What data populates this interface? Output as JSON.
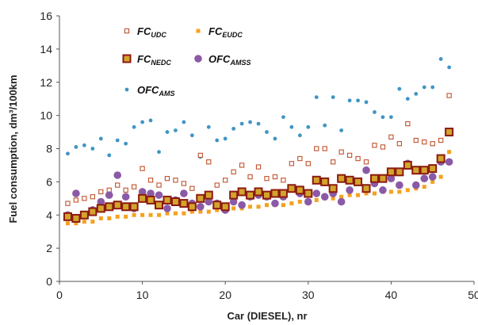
{
  "chart_data": {
    "type": "scatter",
    "xlabel": "Car (DIESEL), nr",
    "ylabel": "Fuel consumption, dm³/100km",
    "xlim": [
      0,
      50
    ],
    "ylim": [
      0,
      16
    ],
    "xticks": [
      "0",
      "10",
      "20",
      "30",
      "40",
      "50"
    ],
    "yticks": [
      "0",
      "2",
      "4",
      "6",
      "8",
      "10",
      "12",
      "14",
      "16"
    ],
    "grid": false,
    "legend_position": "top-left",
    "series": [
      {
        "name": "FC_UDC",
        "label_main": "FC",
        "label_sub": "UDC",
        "marker": "hollow-square",
        "color": "#c0522d",
        "x": [
          1,
          2,
          3,
          4,
          5,
          6,
          7,
          8,
          9,
          10,
          11,
          12,
          13,
          14,
          15,
          16,
          17,
          18,
          19,
          20,
          21,
          22,
          23,
          24,
          25,
          26,
          27,
          28,
          29,
          30,
          31,
          32,
          33,
          34,
          35,
          36,
          37,
          38,
          39,
          40,
          41,
          42,
          43,
          44,
          45,
          46,
          47
        ],
        "y": [
          4.7,
          4.9,
          5.0,
          5.1,
          5.4,
          5.5,
          5.8,
          5.5,
          5.7,
          6.8,
          6.1,
          5.8,
          6.2,
          6.1,
          5.9,
          5.6,
          7.6,
          7.2,
          5.8,
          6.1,
          6.6,
          7.0,
          6.3,
          6.9,
          6.2,
          6.3,
          6.1,
          7.1,
          7.4,
          7.1,
          8.0,
          8.0,
          7.2,
          7.8,
          7.6,
          7.4,
          7.2,
          8.2,
          8.1,
          8.7,
          8.3,
          9.5,
          8.5,
          8.4,
          8.3,
          8.5,
          11.2
        ]
      },
      {
        "name": "FC_EUDC",
        "label_main": "FC",
        "label_sub": "EUDC",
        "marker": "small-square",
        "color": "#f5a11e",
        "x": [
          1,
          2,
          3,
          4,
          5,
          6,
          7,
          8,
          9,
          10,
          11,
          12,
          13,
          14,
          15,
          16,
          17,
          18,
          19,
          20,
          21,
          22,
          23,
          24,
          25,
          26,
          27,
          28,
          29,
          30,
          31,
          32,
          33,
          34,
          35,
          36,
          37,
          38,
          39,
          40,
          41,
          42,
          43,
          44,
          45,
          46,
          47
        ],
        "y": [
          3.5,
          3.5,
          3.6,
          3.6,
          3.8,
          3.8,
          3.9,
          3.9,
          4.0,
          4.0,
          4.0,
          4.0,
          4.1,
          4.1,
          4.1,
          4.2,
          4.2,
          4.2,
          4.3,
          4.3,
          4.4,
          4.4,
          4.5,
          4.5,
          4.6,
          4.6,
          4.6,
          4.7,
          4.8,
          4.8,
          4.9,
          5.0,
          5.0,
          5.1,
          5.2,
          5.2,
          5.3,
          5.3,
          5.4,
          5.4,
          5.4,
          5.5,
          5.6,
          5.7,
          6.0,
          6.3,
          7.8
        ]
      },
      {
        "name": "FC_NEDC",
        "label_main": "FC",
        "label_sub": "NEDC",
        "marker": "filled-square",
        "color": "#8b1a10",
        "fill": "#d3a42c",
        "x": [
          1,
          2,
          3,
          4,
          5,
          6,
          7,
          8,
          9,
          10,
          11,
          12,
          13,
          14,
          15,
          16,
          17,
          18,
          19,
          20,
          21,
          22,
          23,
          24,
          25,
          26,
          27,
          28,
          29,
          30,
          31,
          32,
          33,
          34,
          35,
          36,
          37,
          38,
          39,
          40,
          41,
          42,
          43,
          44,
          45,
          46,
          47
        ],
        "y": [
          3.9,
          3.8,
          4.0,
          4.2,
          4.4,
          4.5,
          4.6,
          4.5,
          4.5,
          5.0,
          4.9,
          4.6,
          4.9,
          4.8,
          4.7,
          4.5,
          5.0,
          5.2,
          4.6,
          4.5,
          5.2,
          5.4,
          5.2,
          5.4,
          5.2,
          5.3,
          5.3,
          5.6,
          5.5,
          5.3,
          6.1,
          6.0,
          5.6,
          6.2,
          6.1,
          6.0,
          5.6,
          6.2,
          6.2,
          6.6,
          6.6,
          7.0,
          6.7,
          6.7,
          6.8,
          7.4,
          9.0
        ]
      },
      {
        "name": "OFC_AMSS",
        "label_main": "OFC",
        "label_sub": "AMSS",
        "marker": "circle",
        "color": "#8a5aa6",
        "x": [
          1,
          2,
          3,
          4,
          5,
          6,
          7,
          8,
          9,
          10,
          11,
          12,
          13,
          14,
          15,
          16,
          17,
          18,
          19,
          20,
          21,
          22,
          23,
          24,
          25,
          26,
          27,
          28,
          29,
          30,
          31,
          32,
          33,
          34,
          35,
          36,
          37,
          38,
          39,
          40,
          41,
          42,
          43,
          44,
          45,
          46,
          47
        ],
        "y": [
          4.0,
          5.3,
          4.0,
          4.3,
          4.8,
          5.2,
          6.4,
          5.1,
          4.4,
          5.4,
          5.3,
          5.2,
          4.4,
          4.9,
          5.3,
          4.7,
          4.5,
          4.8,
          4.7,
          4.3,
          4.8,
          4.6,
          5.1,
          5.2,
          5.1,
          4.7,
          5.1,
          5.6,
          5.3,
          4.8,
          5.3,
          5.1,
          5.3,
          4.8,
          5.5,
          6.0,
          6.7,
          5.9,
          5.5,
          6.2,
          5.8,
          7.1,
          5.8,
          6.2,
          6.3,
          7.2,
          7.2
        ]
      },
      {
        "name": "OFC_AMS",
        "label_main": "OFC",
        "label_sub": "AMS",
        "marker": "dot",
        "color": "#3f95c4",
        "x": [
          1,
          2,
          3,
          4,
          5,
          6,
          7,
          8,
          9,
          10,
          11,
          12,
          13,
          14,
          15,
          16,
          17,
          18,
          19,
          20,
          21,
          22,
          23,
          24,
          25,
          26,
          27,
          28,
          29,
          30,
          31,
          32,
          33,
          34,
          35,
          36,
          37,
          38,
          39,
          40,
          41,
          42,
          43,
          44,
          45,
          46,
          47
        ],
        "y": [
          7.7,
          8.1,
          8.2,
          8.0,
          8.6,
          7.6,
          8.5,
          8.3,
          9.3,
          9.6,
          9.7,
          7.8,
          9.0,
          9.1,
          9.6,
          8.8,
          7.5,
          9.3,
          8.5,
          8.6,
          9.2,
          9.5,
          9.6,
          9.5,
          9.0,
          8.6,
          9.9,
          9.3,
          8.8,
          9.3,
          11.1,
          9.4,
          11.1,
          9.1,
          10.9,
          10.9,
          10.8,
          10.2,
          9.9,
          9.9,
          11.6,
          11.0,
          11.3,
          11.7,
          11.7,
          13.4,
          12.9
        ]
      }
    ]
  }
}
